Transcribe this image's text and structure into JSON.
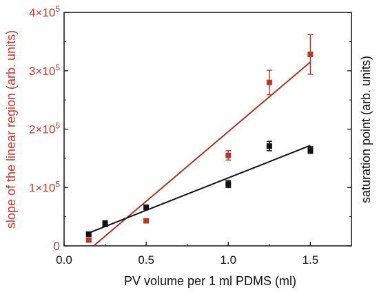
{
  "chart_data": {
    "type": "scatter",
    "xlabel": "PV volume per 1 ml PDMS (ml)",
    "ylabel_left": "slope of the linear region (arb. units)",
    "ylabel_right": "saturation point (arb. units)",
    "xlim": [
      0.0,
      1.75
    ],
    "ylim": [
      0,
      400000
    ],
    "x_ticks": [
      0.0,
      0.5,
      1.0,
      1.5
    ],
    "x_tick_labels": [
      "0.0",
      "0.5",
      "1.0",
      "1.5"
    ],
    "y_ticks": [
      0,
      100000,
      200000,
      300000,
      400000
    ],
    "y_tick_labels": [
      {
        "base": "0",
        "exp": ""
      },
      {
        "base": "1×10",
        "exp": "5"
      },
      {
        "base": "2×10",
        "exp": "5"
      },
      {
        "base": "3×10",
        "exp": "5"
      },
      {
        "base": "4×10",
        "exp": "5"
      }
    ],
    "colors": {
      "left_axis": "#c0392b",
      "red_series": "#b03a2e",
      "red_fit": "#a8321f",
      "black_series": "#111111",
      "axis": "#111111"
    },
    "series": [
      {
        "color": "#b03a2e",
        "x": [
          0.15,
          0.5,
          1.0,
          1.25,
          1.5
        ],
        "y": [
          10000,
          43000,
          155000,
          280000,
          328000
        ],
        "yerr": [
          3000,
          3000,
          8000,
          21000,
          34000
        ],
        "fit": {
          "x": [
            0.18,
            1.5
          ],
          "y": [
            0,
            315000
          ]
        }
      },
      {
        "color": "#111111",
        "x": [
          0.15,
          0.25,
          0.5,
          1.0,
          1.25,
          1.5
        ],
        "y": [
          20000,
          38000,
          66000,
          106000,
          171000,
          164000
        ],
        "yerr": [
          3000,
          5000,
          4000,
          6000,
          8000,
          6000
        ],
        "fit": {
          "x": [
            0.15,
            1.5
          ],
          "y": [
            22000,
            172000
          ]
        }
      }
    ]
  }
}
